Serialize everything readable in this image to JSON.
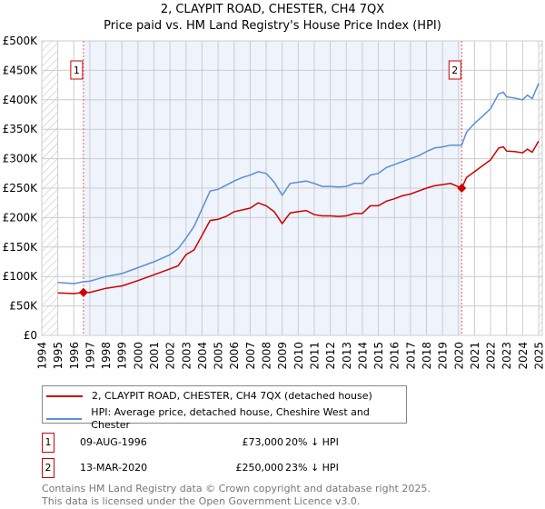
{
  "chart_data": {
    "type": "line",
    "title": "2, CLAYPIT ROAD, CHESTER, CH4 7QX",
    "subtitle": "Price paid vs. HM Land Registry's House Price Index (HPI)",
    "xlim": [
      1994,
      2025
    ],
    "ylim": [
      0,
      500000
    ],
    "x_ticks": [
      "1994",
      "1995",
      "1996",
      "1997",
      "1998",
      "1999",
      "2000",
      "2001",
      "2002",
      "2003",
      "2004",
      "2005",
      "2006",
      "2007",
      "2008",
      "2009",
      "2010",
      "2011",
      "2012",
      "2013",
      "2014",
      "2015",
      "2016",
      "2017",
      "2018",
      "2019",
      "2020",
      "2021",
      "2022",
      "2023",
      "2024",
      "2025"
    ],
    "y_ticks": [
      {
        "v": 0,
        "label": "£0"
      },
      {
        "v": 50000,
        "label": "£50K"
      },
      {
        "v": 100000,
        "label": "£100K"
      },
      {
        "v": 150000,
        "label": "£150K"
      },
      {
        "v": 200000,
        "label": "£200K"
      },
      {
        "v": 250000,
        "label": "£250K"
      },
      {
        "v": 300000,
        "label": "£300K"
      },
      {
        "v": 350000,
        "label": "£350K"
      },
      {
        "v": 400000,
        "label": "£400K"
      },
      {
        "v": 450000,
        "label": "£450K"
      },
      {
        "v": 500000,
        "label": "£500K"
      }
    ],
    "grid": true,
    "x": [
      1995,
      1996,
      1996.6,
      1997,
      1998,
      1999,
      2000,
      2001,
      2002,
      2002.5,
      2003,
      2003.5,
      2004,
      2004.5,
      2005,
      2005.5,
      2006,
      2006.5,
      2007,
      2007.5,
      2008,
      2008.5,
      2009,
      2009.5,
      2010,
      2010.5,
      2011,
      2011.5,
      2012,
      2012.5,
      2013,
      2013.5,
      2014,
      2014.5,
      2015,
      2015.5,
      2016,
      2016.5,
      2017,
      2017.5,
      2018,
      2018.5,
      2019,
      2019.5,
      2020.2,
      2020.5,
      2021,
      2021.5,
      2022,
      2022.5,
      2022.8,
      2023,
      2023.5,
      2024,
      2024.3,
      2024.6,
      2025
    ],
    "series": [
      {
        "name": "2, CLAYPIT ROAD, CHESTER, CH4 7QX (detached house)",
        "color": "#cc0000",
        "values": [
          72,
          71,
          73,
          73,
          80,
          84,
          93,
          103,
          113,
          118,
          137,
          145,
          170,
          195,
          197,
          202,
          210,
          213,
          216,
          225,
          220,
          210,
          190,
          208,
          210,
          212,
          205,
          203,
          203,
          202,
          203,
          207,
          207,
          220,
          220,
          228,
          232,
          237,
          240,
          245,
          250,
          254,
          256,
          258,
          250,
          268,
          278,
          288,
          298,
          318,
          320,
          313,
          312,
          310,
          316,
          311,
          330
        ]
      },
      {
        "name": "HPI: Average price, detached house, Cheshire West and Chester",
        "color": "#5b8fd4",
        "values": [
          90,
          88,
          91,
          92,
          100,
          105,
          115,
          125,
          137,
          147,
          165,
          185,
          215,
          245,
          248,
          255,
          262,
          268,
          272,
          278,
          275,
          260,
          238,
          258,
          260,
          262,
          258,
          253,
          253,
          252,
          253,
          258,
          258,
          272,
          275,
          285,
          290,
          295,
          300,
          305,
          312,
          318,
          320,
          323,
          323,
          345,
          360,
          372,
          385,
          410,
          413,
          405,
          403,
          400,
          408,
          402,
          428
        ]
      }
    ],
    "value_unit": "thousand GBP",
    "sales": [
      {
        "id": "1",
        "x": 1996.6,
        "value": 73,
        "date": "09-AUG-1996",
        "price": "£73,000",
        "delta": "20% ↓ HPI"
      },
      {
        "id": "2",
        "x": 2020.2,
        "value": 250,
        "date": "13-MAR-2020",
        "price": "£250,000",
        "delta": "23% ↓ HPI"
      }
    ],
    "legend_placement": "below"
  },
  "footer": {
    "line1": "Contains HM Land Registry data © Crown copyright and database right 2025.",
    "line2": "This data is licensed under the Open Government Licence v3.0."
  }
}
